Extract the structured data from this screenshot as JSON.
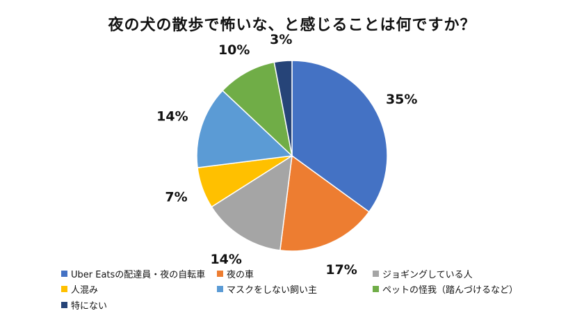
{
  "chart_data": {
    "type": "pie",
    "title": "夜の犬の散歩で怖いな、と感じることは何ですか？",
    "categories": [
      "Uber Eatsの配達員・夜の自転車",
      "夜の車",
      "ジョギングしている人",
      "人混み",
      "マスクをしない飼い主",
      "ペットの怪我（踏んづけるなど）",
      "特にない"
    ],
    "values": [
      35,
      17,
      14,
      7,
      14,
      10,
      3
    ],
    "value_labels": [
      "35%",
      "17%",
      "14%",
      "7%",
      "14%",
      "10%",
      "3%"
    ],
    "colors": [
      "#4472C4",
      "#ED7D31",
      "#A5A5A5",
      "#FFC000",
      "#5B9BD5",
      "#70AD47",
      "#264478"
    ],
    "legend_position": "bottom",
    "start_angle": "12 o'clock",
    "direction": "clockwise"
  }
}
